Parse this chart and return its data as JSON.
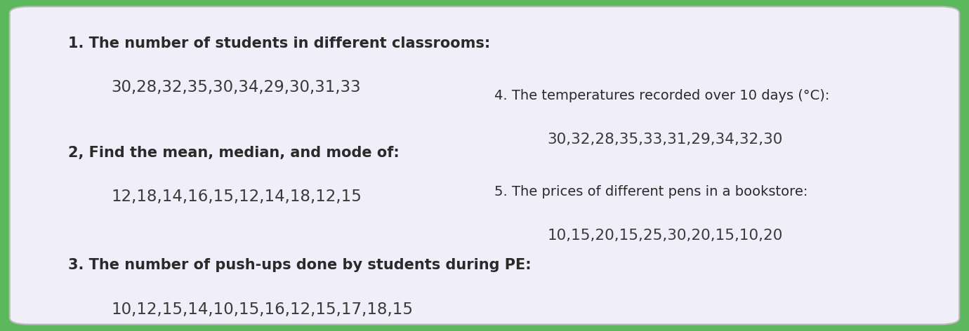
{
  "bg_outer": "#5cb85c",
  "bg_card": "#f0eef8",
  "card_edge_color": "#cccccc",
  "text_color": "#2a2a2a",
  "text_color_data": "#3a3a3a",
  "line1_title": "1. The number of students in different classrooms:",
  "line1_data": "30,28,32,35,30,34,29,30,31,33",
  "line2_title": "2, Find the mean, median, and mode of:",
  "line2_data": "12,18,14,16,15,12,14,18,12,15",
  "line3_title": "3. The number of push-ups done by students during PE:",
  "line3_data": "10,12,15,14,10,15,16,12,15,17,18,15",
  "line4_title": "4. The temperatures recorded over 10 days (°C):",
  "line4_data": "30,32,28,35,33,31,29,34,32,30",
  "line5_title": "5. The prices of different pens in a bookstore:",
  "line5_data": "10,15,20,15,25,30,20,15,10,20"
}
